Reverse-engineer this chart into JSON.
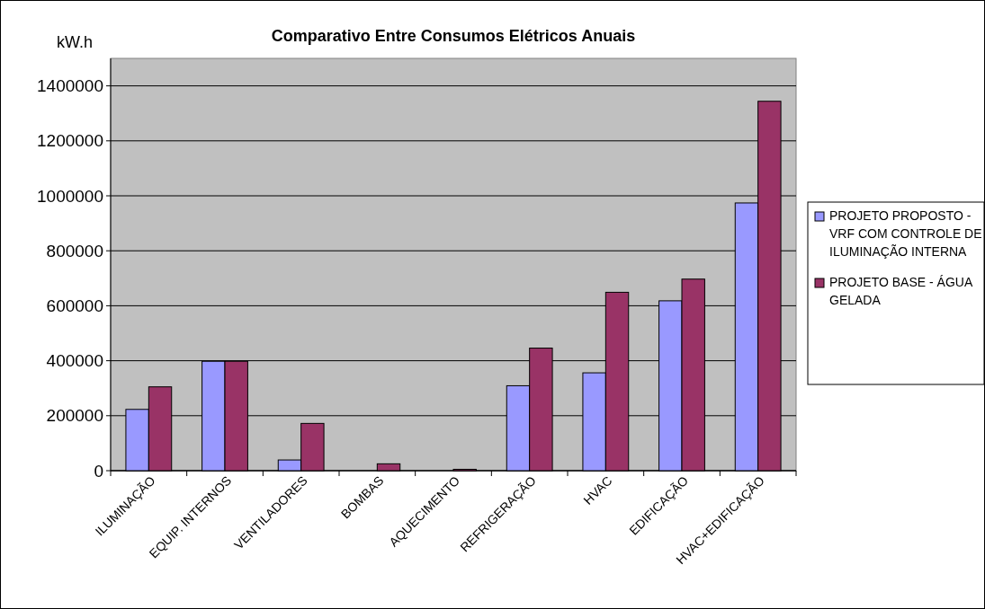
{
  "chart_data": {
    "type": "bar",
    "title": "Comparativo Entre Consumos Elétricos Anuais",
    "ylabel": "kW.h",
    "categories": [
      "ILUMINAÇÃO",
      "EQUIP. INTERNOS",
      "VENTILADORES",
      "BOMBAS",
      "AQUECIMENTO",
      "REFRIGERAÇÃO",
      "HVAC",
      "EDIFICAÇÃO",
      "HVAC+EDIFICAÇÃO"
    ],
    "series": [
      {
        "name": "PROJETO PROPOSTO - VRF COM CONTROLE DE ILUMINAÇÃO INTERNA",
        "color": "#9999ff",
        "values": [
          223000,
          398000,
          39000,
          0,
          0,
          309000,
          356000,
          618000,
          974000
        ]
      },
      {
        "name": "PROJETO BASE - ÁGUA GELADA",
        "color": "#993366",
        "values": [
          305000,
          398000,
          172000,
          25000,
          5000,
          446000,
          649000,
          697000,
          1344000
        ]
      }
    ],
    "ylim": [
      0,
      1500000
    ],
    "yticks": [
      0,
      200000,
      400000,
      600000,
      800000,
      1000000,
      1200000,
      1400000
    ],
    "grid": "y",
    "legend": "right"
  }
}
